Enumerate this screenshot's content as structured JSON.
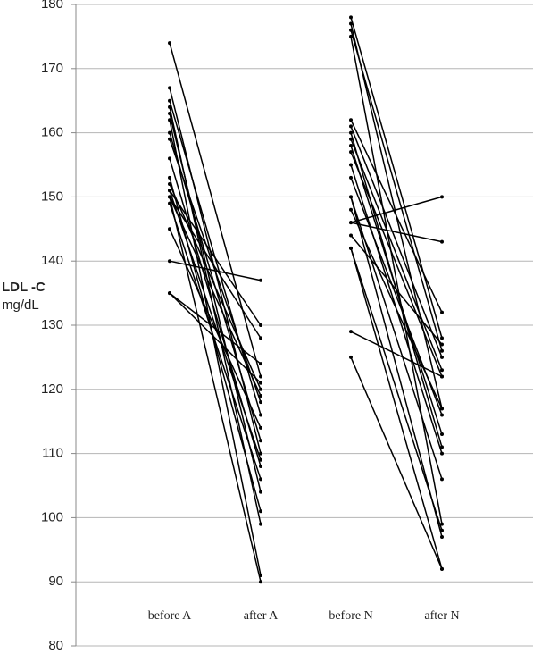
{
  "chart_data": {
    "type": "slope",
    "ylabel": [
      "LDL -C",
      "mg/dL"
    ],
    "categories": [
      "before A",
      "after A",
      "before N",
      "after N"
    ],
    "color": "#000000",
    "ylim": [
      80,
      180
    ],
    "yticks": [
      80,
      90,
      100,
      110,
      120,
      130,
      140,
      150,
      160,
      170,
      180
    ],
    "grid": true,
    "series": [
      {
        "values": [
          174,
          122,
          null,
          null
        ]
      },
      {
        "values": [
          167,
          110,
          null,
          null
        ]
      },
      {
        "values": [
          165,
          116,
          null,
          null
        ]
      },
      {
        "values": [
          164,
          99,
          null,
          null
        ]
      },
      {
        "values": [
          163,
          104,
          null,
          null
        ]
      },
      {
        "values": [
          162,
          91,
          null,
          null
        ]
      },
      {
        "values": [
          160,
          112,
          null,
          null
        ]
      },
      {
        "values": [
          159,
          118,
          null,
          null
        ]
      },
      {
        "values": [
          156,
          108,
          null,
          null
        ]
      },
      {
        "values": [
          153,
          101,
          null,
          null
        ]
      },
      {
        "values": [
          152,
          120,
          null,
          null
        ]
      },
      {
        "values": [
          151,
          109,
          null,
          null
        ]
      },
      {
        "values": [
          150,
          90,
          null,
          null
        ]
      },
      {
        "values": [
          150,
          119,
          null,
          null
        ]
      },
      {
        "values": [
          149,
          106,
          null,
          null
        ]
      },
      {
        "values": [
          145,
          114,
          null,
          null
        ]
      },
      {
        "values": [
          140,
          137,
          null,
          null
        ]
      },
      {
        "values": [
          135,
          124,
          null,
          null
        ]
      },
      {
        "values": [
          135,
          121,
          null,
          null
        ]
      },
      {
        "values": [
          151,
          130,
          null,
          null
        ]
      },
      {
        "values": [
          150,
          128,
          null,
          null
        ]
      },
      {
        "values": [
          null,
          null,
          178,
          128
        ]
      },
      {
        "values": [
          null,
          null,
          177,
          117
        ]
      },
      {
        "values": [
          null,
          null,
          176,
          126
        ]
      },
      {
        "values": [
          null,
          null,
          175,
          99
        ]
      },
      {
        "values": [
          null,
          null,
          162,
          132
        ]
      },
      {
        "values": [
          null,
          null,
          161,
          125
        ]
      },
      {
        "values": [
          null,
          null,
          160,
          111
        ]
      },
      {
        "values": [
          null,
          null,
          159,
          123
        ]
      },
      {
        "values": [
          null,
          null,
          158,
          113
        ]
      },
      {
        "values": [
          null,
          null,
          157,
          122
        ]
      },
      {
        "values": [
          null,
          null,
          155,
          110
        ]
      },
      {
        "values": [
          null,
          null,
          153,
          116
        ]
      },
      {
        "values": [
          null,
          null,
          150,
          106
        ]
      },
      {
        "values": [
          null,
          null,
          150,
          97
        ]
      },
      {
        "values": [
          null,
          null,
          148,
          117
        ]
      },
      {
        "values": [
          null,
          null,
          146,
          150
        ]
      },
      {
        "values": [
          null,
          null,
          146,
          143
        ]
      },
      {
        "values": [
          null,
          null,
          144,
          127
        ]
      },
      {
        "values": [
          null,
          null,
          142,
          92
        ]
      },
      {
        "values": [
          null,
          null,
          142,
          98
        ]
      },
      {
        "values": [
          null,
          null,
          129,
          122
        ]
      },
      {
        "values": [
          null,
          null,
          125,
          92
        ]
      }
    ]
  }
}
